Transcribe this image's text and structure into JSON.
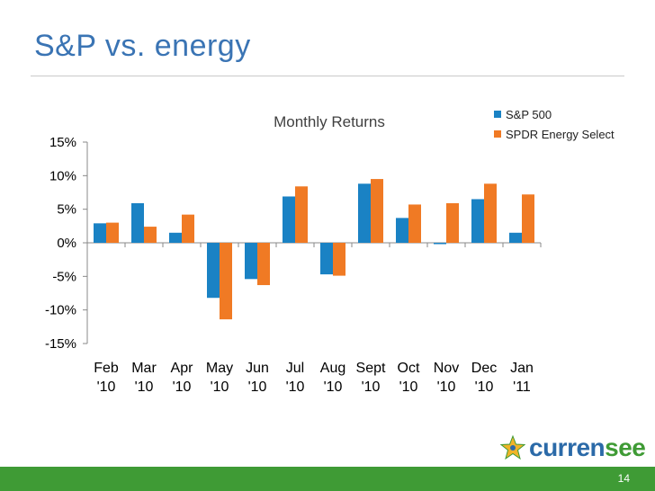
{
  "slide": {
    "title": "S&P vs. energy",
    "page_number": "14"
  },
  "logo": {
    "text_part1": "curren",
    "text_part2": "see",
    "icon": "star-icon"
  },
  "colors": {
    "title": "#3a74b4",
    "sp500": "#1a82c4",
    "energy": "#f07a24",
    "footer": "#3f9b35"
  },
  "chart_data": {
    "type": "bar",
    "title": "Monthly Returns",
    "categories": [
      [
        "Feb",
        "'10"
      ],
      [
        "Mar",
        "'10"
      ],
      [
        "Apr",
        "'10"
      ],
      [
        "May",
        "'10"
      ],
      [
        "Jun",
        "'10"
      ],
      [
        "Jul",
        "'10"
      ],
      [
        "Aug",
        "'10"
      ],
      [
        "Sept",
        "'10"
      ],
      [
        "Oct",
        "'10"
      ],
      [
        "Nov",
        "'10"
      ],
      [
        "Dec",
        "'10"
      ],
      [
        "Jan",
        "'11"
      ]
    ],
    "series": [
      {
        "name": "S&P 500",
        "color": "#1a82c4",
        "values": [
          2.9,
          5.9,
          1.5,
          -8.2,
          -5.4,
          6.9,
          -4.7,
          8.8,
          3.7,
          -0.2,
          6.5,
          1.5
        ]
      },
      {
        "name": "SPDR Energy Select",
        "color": "#f07a24",
        "values": [
          3.0,
          2.4,
          4.2,
          -11.4,
          -6.3,
          8.4,
          -4.9,
          9.5,
          5.7,
          5.9,
          8.8,
          7.2
        ]
      }
    ],
    "ylim": [
      -15,
      15
    ],
    "yticks": [
      15,
      10,
      5,
      0,
      -5,
      -10,
      -15
    ],
    "ytick_labels": [
      "15%",
      "10%",
      "5%",
      "0%",
      "-5%",
      "-10%",
      "-15%"
    ],
    "grid": false,
    "legend_position": "top-right"
  }
}
